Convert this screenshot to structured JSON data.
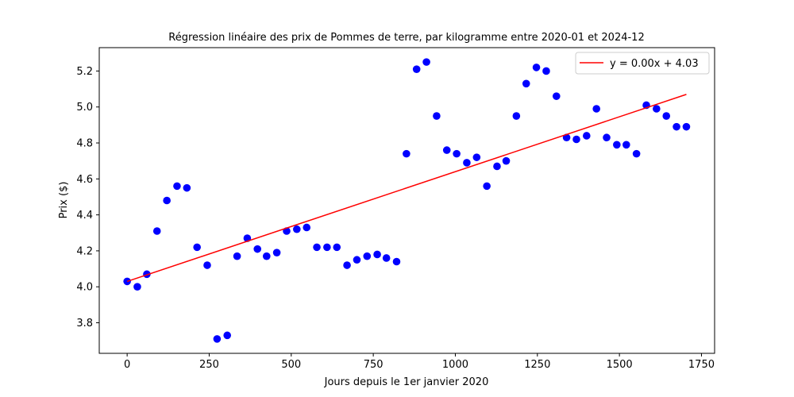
{
  "chart_data": {
    "type": "scatter",
    "title": "Régression linéaire des prix de Pommes de terre, par kilogramme entre 2020-01 et 2024-12",
    "xlabel": "Jours depuis le 1er janvier 2020",
    "ylabel": "Prix ($)",
    "xlim": [
      -85,
      1790
    ],
    "ylim": [
      3.63,
      5.33
    ],
    "xticks": [
      0,
      250,
      500,
      750,
      1000,
      1250,
      1500,
      1750
    ],
    "yticks": [
      3.8,
      4.0,
      4.2,
      4.4,
      4.6,
      4.8,
      5.0,
      5.2
    ],
    "ytick_labels": [
      "3.8",
      "4.0",
      "4.2",
      "4.4",
      "4.6",
      "4.8",
      "5.0",
      "5.2"
    ],
    "grid": false,
    "legend_position": "top-right",
    "series": [
      {
        "kind": "points",
        "color": "#0000ff",
        "points": [
          [
            0,
            4.03
          ],
          [
            31,
            4.0
          ],
          [
            60,
            4.07
          ],
          [
            91,
            4.31
          ],
          [
            121,
            4.48
          ],
          [
            152,
            4.56
          ],
          [
            182,
            4.55
          ],
          [
            213,
            4.22
          ],
          [
            244,
            4.12
          ],
          [
            274,
            3.71
          ],
          [
            305,
            3.73
          ],
          [
            335,
            4.17
          ],
          [
            366,
            4.27
          ],
          [
            397,
            4.21
          ],
          [
            425,
            4.17
          ],
          [
            456,
            4.19
          ],
          [
            486,
            4.31
          ],
          [
            517,
            4.32
          ],
          [
            547,
            4.33
          ],
          [
            578,
            4.22
          ],
          [
            609,
            4.22
          ],
          [
            639,
            4.22
          ],
          [
            670,
            4.12
          ],
          [
            700,
            4.15
          ],
          [
            731,
            4.17
          ],
          [
            762,
            4.18
          ],
          [
            790,
            4.16
          ],
          [
            821,
            4.14
          ],
          [
            851,
            4.74
          ],
          [
            882,
            5.21
          ],
          [
            912,
            5.25
          ],
          [
            943,
            4.95
          ],
          [
            974,
            4.76
          ],
          [
            1004,
            4.74
          ],
          [
            1035,
            4.69
          ],
          [
            1065,
            4.72
          ],
          [
            1096,
            4.56
          ],
          [
            1127,
            4.67
          ],
          [
            1155,
            4.7
          ],
          [
            1186,
            4.95
          ],
          [
            1216,
            5.13
          ],
          [
            1247,
            5.22
          ],
          [
            1277,
            5.2
          ],
          [
            1308,
            5.06
          ],
          [
            1339,
            4.83
          ],
          [
            1369,
            4.82
          ],
          [
            1400,
            4.84
          ],
          [
            1430,
            4.99
          ],
          [
            1461,
            4.83
          ],
          [
            1492,
            4.79
          ],
          [
            1521,
            4.79
          ],
          [
            1552,
            4.74
          ],
          [
            1582,
            5.01
          ],
          [
            1613,
            4.99
          ],
          [
            1643,
            4.95
          ],
          [
            1674,
            4.89
          ],
          [
            1704,
            4.89
          ]
        ]
      },
      {
        "kind": "line",
        "name": "y = 0.00x + 4.03",
        "color": "#ff0000",
        "points": [
          [
            0,
            4.03
          ],
          [
            1704,
            5.07
          ]
        ]
      }
    ]
  }
}
